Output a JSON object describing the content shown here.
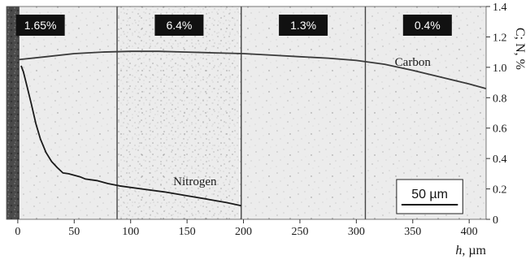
{
  "chart_data": {
    "type": "line",
    "xlabel_symbol": "h",
    "xlabel_unit": ", µm",
    "ylabel": "C; N, %",
    "xlim": [
      -10,
      415
    ],
    "ylim": [
      0,
      1.4
    ],
    "x_ticks": [
      0,
      50,
      100,
      150,
      200,
      250,
      300,
      350,
      400
    ],
    "y_ticks": [
      0,
      0.2,
      0.4,
      0.6,
      0.8,
      1.0,
      1.2,
      1.4
    ],
    "zone_boundaries": [
      88,
      198,
      308
    ],
    "zone_labels": [
      "1.65%",
      "6.4%",
      "1.3%",
      "0.4%"
    ],
    "zone_label_x": [
      20,
      143,
      253,
      363
    ],
    "scale_bar": {
      "label": "50 µm",
      "length": 50,
      "x_start": 340
    },
    "series": [
      {
        "name": "Carbon",
        "color": "#3a3a3a",
        "x": [
          0,
          25,
          50,
          75,
          100,
          125,
          150,
          175,
          200,
          225,
          250,
          275,
          300,
          325,
          350,
          375,
          400,
          415
        ],
        "y": [
          1.05,
          1.07,
          1.09,
          1.1,
          1.105,
          1.105,
          1.1,
          1.095,
          1.09,
          1.08,
          1.07,
          1.06,
          1.045,
          1.02,
          0.98,
          0.935,
          0.89,
          0.86
        ]
      },
      {
        "name": "Nitrogen",
        "color": "#1a1a1a",
        "x": [
          3,
          5,
          8,
          12,
          16,
          20,
          25,
          30,
          35,
          40,
          45,
          50,
          55,
          60,
          70,
          80,
          90,
          110,
          130,
          150,
          170,
          185,
          198
        ],
        "y": [
          1.01,
          0.97,
          0.88,
          0.76,
          0.63,
          0.53,
          0.44,
          0.38,
          0.34,
          0.305,
          0.3,
          0.29,
          0.28,
          0.265,
          0.255,
          0.235,
          0.22,
          0.2,
          0.18,
          0.155,
          0.13,
          0.11,
          0.09
        ]
      }
    ]
  }
}
